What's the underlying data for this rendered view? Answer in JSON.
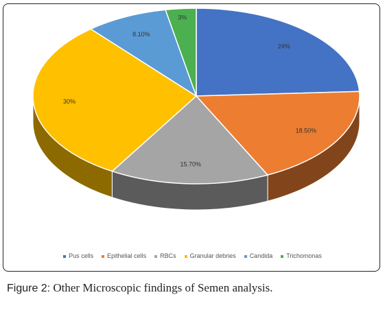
{
  "chart_data": {
    "type": "pie",
    "style": "3d",
    "categories": [
      "Pus cells",
      "Epithelial cells",
      "RBCs",
      "Granular debries",
      "Candida",
      "Trichomonas"
    ],
    "values": [
      24,
      18.5,
      15.7,
      30,
      8.1,
      3
    ],
    "labels": [
      "24%",
      "18.50%",
      "15.70%",
      "30%",
      "8.10%",
      "3%"
    ],
    "colors": [
      "#4472C4",
      "#ED7D31",
      "#A5A5A5",
      "#FFC000",
      "#5B9BD5",
      "#4CAF50"
    ],
    "legend_position": "bottom"
  },
  "caption": {
    "label": "Figure 2:",
    "text": " Other Microscopic findings of Semen analysis."
  }
}
